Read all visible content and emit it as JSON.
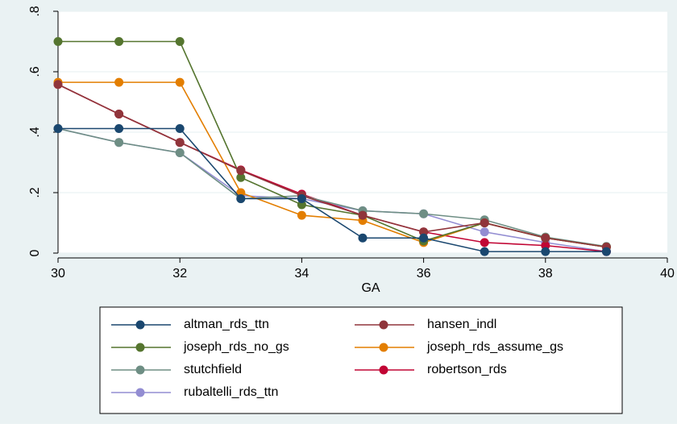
{
  "chart_data": {
    "type": "line",
    "xlabel": "GA",
    "ylabel": "",
    "xlim": [
      30,
      40
    ],
    "ylim": [
      0,
      0.8
    ],
    "x_ticks": [
      30,
      32,
      34,
      36,
      38,
      40
    ],
    "y_ticks": [
      0,
      0.2,
      0.4,
      0.6,
      0.8
    ],
    "y_tick_labels": [
      "0",
      ".2",
      ".4",
      ".6",
      ".8"
    ],
    "grid": true,
    "legend_position": "bottom",
    "series": [
      {
        "name": "altman_rds_ttn",
        "color": "#1a476f",
        "x": [
          30,
          31,
          32,
          33,
          34,
          35,
          36,
          37,
          38,
          39
        ],
        "y": [
          0.412,
          0.412,
          0.412,
          0.18,
          0.18,
          0.05,
          0.05,
          0.005,
          0.005,
          0.005
        ]
      },
      {
        "name": "hansen_indl",
        "color": "#90353b",
        "x": [
          30,
          31,
          32,
          33,
          34,
          35,
          36,
          37,
          38,
          39
        ],
        "y": [
          0.558,
          0.46,
          0.366,
          0.273,
          0.19,
          0.125,
          0.07,
          0.1,
          0.05,
          0.02
        ]
      },
      {
        "name": "joseph_rds_no_gs",
        "color": "#55752f",
        "x": [
          30,
          31,
          32,
          33,
          34,
          35,
          36,
          37,
          38,
          39
        ],
        "y": [
          0.7,
          0.7,
          0.7,
          0.25,
          0.16,
          0.125,
          0.04,
          0.1,
          0.05,
          0.02
        ]
      },
      {
        "name": "joseph_rds_assume_gs",
        "color": "#e37e00",
        "x": [
          30,
          31,
          32,
          33,
          34,
          35,
          36,
          37,
          38,
          39
        ],
        "y": [
          0.565,
          0.565,
          0.565,
          0.2,
          0.125,
          0.108,
          0.035,
          0.1,
          0.05,
          0.02
        ]
      },
      {
        "name": "stutchfield",
        "color": "#6e8e84",
        "x": [
          30,
          31,
          32,
          33,
          34,
          35,
          36,
          37,
          38,
          39
        ],
        "y": [
          0.412,
          0.366,
          0.332,
          0.18,
          0.19,
          0.14,
          0.13,
          0.11,
          0.053,
          0.022
        ]
      },
      {
        "name": "robertson_rds",
        "color": "#c10534",
        "x": [
          30,
          31,
          32,
          33,
          34,
          35,
          36,
          37,
          38,
          39
        ],
        "y": [
          0.558,
          0.46,
          0.366,
          0.275,
          0.195,
          0.125,
          0.07,
          0.035,
          0.025,
          0.005
        ]
      },
      {
        "name": "rubaltelli_rds_ttn",
        "color": "#938dd2",
        "x": [
          30,
          31,
          32,
          33,
          34,
          35,
          36,
          37,
          38,
          39
        ],
        "y": [
          0.412,
          0.366,
          0.332,
          0.19,
          0.18,
          0.14,
          0.13,
          0.07,
          0.035,
          0.005
        ]
      }
    ],
    "legend_order": [
      0,
      1,
      2,
      3,
      4,
      5,
      6
    ]
  },
  "colors": {
    "outer_background": "#eaf2f3",
    "plot_background": "#ffffff",
    "gridline": "#eaf2f3",
    "axis": "#000000",
    "legend_border": "#000000"
  }
}
